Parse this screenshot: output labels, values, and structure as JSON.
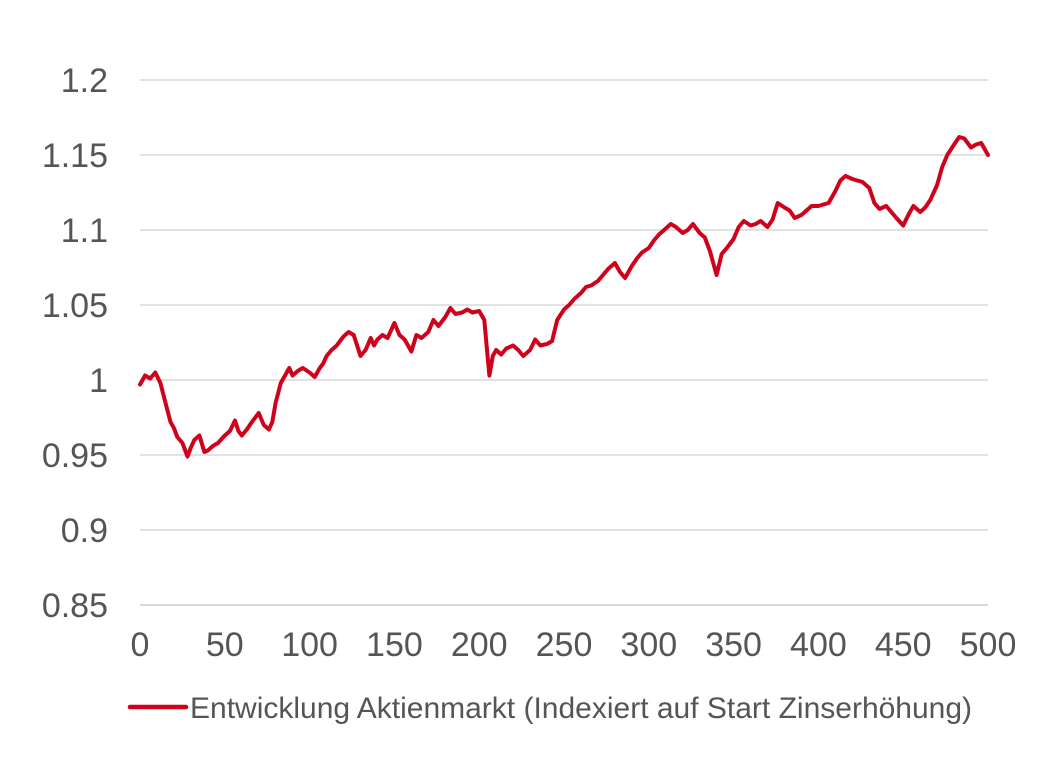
{
  "chart_data": {
    "type": "line",
    "title": "",
    "xlabel": "",
    "ylabel": "",
    "xlim": [
      0,
      500
    ],
    "ylim": [
      0.85,
      1.2
    ],
    "x_ticks": [
      0,
      50,
      100,
      150,
      200,
      250,
      300,
      350,
      400,
      450,
      500
    ],
    "x_tick_labels": [
      "0",
      "50",
      "100",
      "150",
      "200",
      "250",
      "300",
      "350",
      "400",
      "450",
      "500"
    ],
    "y_ticks": [
      0.85,
      0.9,
      0.95,
      1.0,
      1.05,
      1.1,
      1.15,
      1.2
    ],
    "y_tick_labels": [
      "0.85",
      "0.9",
      "0.95",
      "1",
      "1.05",
      "1.1",
      "1.15",
      "1.2"
    ],
    "grid": "horizontal",
    "legend_position": "bottom",
    "series": [
      {
        "name": "Entwicklung Aktienmarkt (Indexiert auf Start Zinserhöhung)",
        "color": "#d0021b",
        "x": [
          0,
          3,
          6,
          9,
          12,
          15,
          18,
          20,
          22,
          25,
          28,
          30,
          32,
          35,
          38,
          40,
          43,
          46,
          50,
          53,
          56,
          58,
          60,
          63,
          66,
          70,
          73,
          76,
          78,
          80,
          83,
          86,
          88,
          90,
          93,
          96,
          100,
          103,
          106,
          108,
          110,
          113,
          116,
          120,
          123,
          126,
          130,
          133,
          136,
          138,
          140,
          143,
          146,
          150,
          153,
          156,
          160,
          163,
          166,
          170,
          173,
          176,
          180,
          183,
          186,
          190,
          193,
          196,
          200,
          203,
          205,
          206,
          208,
          210,
          213,
          216,
          220,
          223,
          226,
          230,
          233,
          236,
          240,
          243,
          246,
          250,
          253,
          256,
          260,
          263,
          266,
          270,
          273,
          276,
          280,
          283,
          286,
          290,
          293,
          296,
          300,
          303,
          306,
          310,
          313,
          316,
          320,
          323,
          326,
          330,
          333,
          336,
          340,
          343,
          346,
          350,
          353,
          356,
          360,
          363,
          366,
          370,
          373,
          376,
          380,
          383,
          386,
          390,
          393,
          396,
          400,
          403,
          406,
          410,
          413,
          416,
          420,
          423,
          426,
          430,
          433,
          436,
          440,
          443,
          446,
          450,
          453,
          456,
          460,
          463,
          466,
          470,
          473,
          476,
          480,
          483,
          486,
          490,
          493,
          496,
          500
        ],
        "values": [
          0.997,
          1.003,
          1.001,
          1.005,
          0.998,
          0.985,
          0.972,
          0.968,
          0.962,
          0.958,
          0.949,
          0.955,
          0.96,
          0.963,
          0.952,
          0.953,
          0.956,
          0.958,
          0.963,
          0.966,
          0.973,
          0.966,
          0.963,
          0.967,
          0.972,
          0.978,
          0.97,
          0.967,
          0.972,
          0.985,
          0.998,
          1.004,
          1.008,
          1.003,
          1.006,
          1.008,
          1.005,
          1.002,
          1.008,
          1.011,
          1.016,
          1.02,
          1.023,
          1.029,
          1.032,
          1.03,
          1.016,
          1.02,
          1.028,
          1.023,
          1.027,
          1.03,
          1.028,
          1.038,
          1.03,
          1.027,
          1.019,
          1.03,
          1.028,
          1.032,
          1.04,
          1.036,
          1.042,
          1.048,
          1.044,
          1.045,
          1.047,
          1.045,
          1.046,
          1.04,
          1.015,
          1.003,
          1.016,
          1.02,
          1.017,
          1.021,
          1.023,
          1.02,
          1.016,
          1.02,
          1.027,
          1.023,
          1.024,
          1.026,
          1.04,
          1.047,
          1.05,
          1.054,
          1.058,
          1.062,
          1.063,
          1.066,
          1.07,
          1.074,
          1.078,
          1.072,
          1.068,
          1.076,
          1.081,
          1.085,
          1.088,
          1.093,
          1.097,
          1.101,
          1.104,
          1.102,
          1.098,
          1.1,
          1.104,
          1.098,
          1.095,
          1.086,
          1.07,
          1.084,
          1.088,
          1.094,
          1.102,
          1.106,
          1.103,
          1.104,
          1.106,
          1.102,
          1.107,
          1.118,
          1.115,
          1.113,
          1.108,
          1.11,
          1.113,
          1.116,
          1.116,
          1.117,
          1.118,
          1.126,
          1.133,
          1.136,
          1.134,
          1.133,
          1.132,
          1.128,
          1.118,
          1.114,
          1.116,
          1.112,
          1.108,
          1.103,
          1.11,
          1.116,
          1.112,
          1.115,
          1.12,
          1.13,
          1.142,
          1.15,
          1.157,
          1.162,
          1.161,
          1.155,
          1.157,
          1.158,
          1.15
        ]
      }
    ]
  }
}
